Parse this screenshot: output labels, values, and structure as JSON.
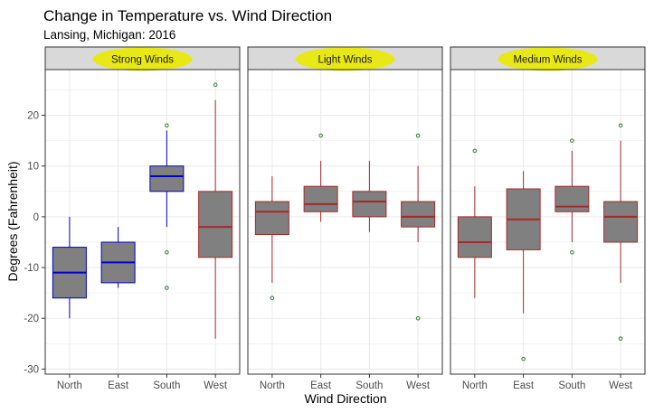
{
  "chart_data": {
    "type": "boxplot",
    "title": "Change in Temperature vs. Wind Direction",
    "subtitle": "Lansing, Michigan: 2016",
    "xlabel": "Wind Direction",
    "ylabel": "Degrees (Fahrenheit)",
    "categories": [
      "North",
      "East",
      "South",
      "West"
    ],
    "y_ticks": [
      -30,
      -20,
      -10,
      0,
      10,
      20
    ],
    "ylim": [
      -31,
      29
    ],
    "grid": true,
    "highlight_color": "#e8e817",
    "outlier_color": "#2e7d32",
    "facets": [
      {
        "label": "Strong Winds",
        "stroke_colors": [
          "#0000cc",
          "#0000cc",
          "#0000cc",
          "#a52a2a"
        ],
        "boxes": [
          {
            "category": "North",
            "whisker_low": -20,
            "q1": -16,
            "median": -11,
            "q3": -6,
            "whisker_high": 0,
            "outliers": []
          },
          {
            "category": "East",
            "whisker_low": -14,
            "q1": -13,
            "median": -9,
            "q3": -5,
            "whisker_high": -2,
            "outliers": []
          },
          {
            "category": "South",
            "whisker_low": -2,
            "q1": 5,
            "median": 8,
            "q3": 10,
            "whisker_high": 17,
            "outliers": [
              18,
              -7,
              -14
            ]
          },
          {
            "category": "West",
            "whisker_low": -24,
            "q1": -8,
            "median": -2,
            "q3": 5,
            "whisker_high": 23,
            "outliers": [
              26
            ]
          }
        ]
      },
      {
        "label": "Light Winds",
        "stroke_colors": [
          "#a52a2a",
          "#a52a2a",
          "#a52a2a",
          "#a52a2a"
        ],
        "boxes": [
          {
            "category": "North",
            "whisker_low": -13,
            "q1": -3.5,
            "median": 1,
            "q3": 3,
            "whisker_high": 8,
            "outliers": [
              -16
            ]
          },
          {
            "category": "East",
            "whisker_low": -1,
            "q1": 1,
            "median": 2.5,
            "q3": 6,
            "whisker_high": 11,
            "outliers": [
              16
            ]
          },
          {
            "category": "South",
            "whisker_low": -3,
            "q1": 0,
            "median": 3,
            "q3": 5,
            "whisker_high": 11,
            "outliers": []
          },
          {
            "category": "West",
            "whisker_low": -5,
            "q1": -2,
            "median": 0,
            "q3": 3,
            "whisker_high": 10,
            "outliers": [
              16,
              -20
            ]
          }
        ]
      },
      {
        "label": "Medium Winds",
        "stroke_colors": [
          "#a52a2a",
          "#a52a2a",
          "#a52a2a",
          "#a52a2a"
        ],
        "boxes": [
          {
            "category": "North",
            "whisker_low": -16,
            "q1": -8,
            "median": -5,
            "q3": 0,
            "whisker_high": 6,
            "outliers": [
              13
            ]
          },
          {
            "category": "East",
            "whisker_low": -19,
            "q1": -6.5,
            "median": -0.5,
            "q3": 5.5,
            "whisker_high": 9,
            "outliers": [
              -28
            ]
          },
          {
            "category": "South",
            "whisker_low": -5,
            "q1": 1,
            "median": 2,
            "q3": 6,
            "whisker_high": 13,
            "outliers": [
              15,
              -7
            ]
          },
          {
            "category": "West",
            "whisker_low": -13,
            "q1": -5,
            "median": 0,
            "q3": 3,
            "whisker_high": 15,
            "outliers": [
              18,
              -24
            ]
          }
        ]
      }
    ]
  }
}
